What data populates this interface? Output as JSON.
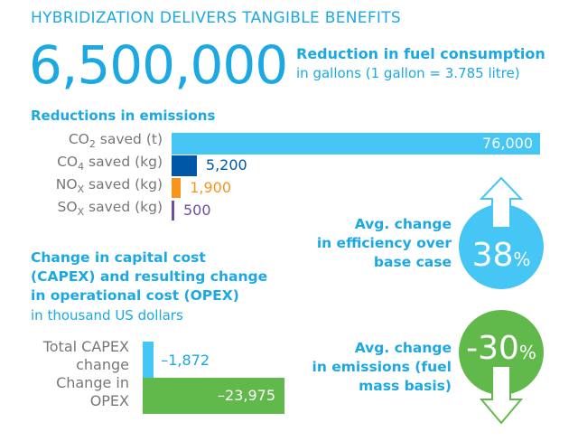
{
  "title": "HYBRIDIZATION DELIVERS TANGIBLE BENEFITS",
  "fuel": {
    "value": "6,500,000",
    "label": "Reduction in fuel consumption",
    "unit": "in gallons (1 gallon = 3.785 litre)"
  },
  "chart_data": [
    {
      "type": "bar",
      "title": "Reductions in emissions",
      "orientation": "horizontal",
      "categories": [
        "CO2 saved (t)",
        "CO4 saved (kg)",
        "NOX saved (kg)",
        "SOX saved (kg)"
      ],
      "label_parts": [
        {
          "a": "CO",
          "sub": "2",
          "b": " saved (t)"
        },
        {
          "a": "CO",
          "sub": "4",
          "b": " saved (kg)"
        },
        {
          "a": "NO",
          "sub": "X",
          "b": " saved (kg)"
        },
        {
          "a": "SO",
          "sub": "X",
          "b": " saved (kg)"
        }
      ],
      "values": [
        76000,
        5200,
        1900,
        500
      ],
      "value_labels": [
        "76,000",
        "5,200",
        "1,900",
        "500"
      ],
      "colors": [
        "#45c6f4",
        "#0057a8",
        "#f7941d",
        "#6b4fa0"
      ]
    },
    {
      "type": "bar",
      "title": "Change in capital cost (CAPEX) and resulting change in operational cost (OPEX)",
      "subtitle": "in thousand US dollars",
      "orientation": "horizontal",
      "categories": [
        "Total CAPEX change",
        "Change in OPEX"
      ],
      "label_lines": [
        [
          "Total CAPEX",
          "change"
        ],
        [
          "Change in",
          "OPEX"
        ]
      ],
      "values": [
        -1872,
        -23975
      ],
      "value_labels": [
        "–1,872",
        "–23,975"
      ],
      "colors": [
        "#45c6f4",
        "#62b94b"
      ]
    }
  ],
  "efficiency": {
    "label": "Avg. change in efficiency over base case",
    "lines": [
      "Avg. change",
      "in efficiency over",
      "base case"
    ],
    "value": "38",
    "unit": "%",
    "color": "#45c6f4"
  },
  "emissions": {
    "label": "Avg. change in emissions (fuel mass basis)",
    "lines": [
      "Avg. change",
      "in emissions (fuel",
      "mass basis)"
    ],
    "value": "-30",
    "unit": "%",
    "color": "#62b94b"
  }
}
